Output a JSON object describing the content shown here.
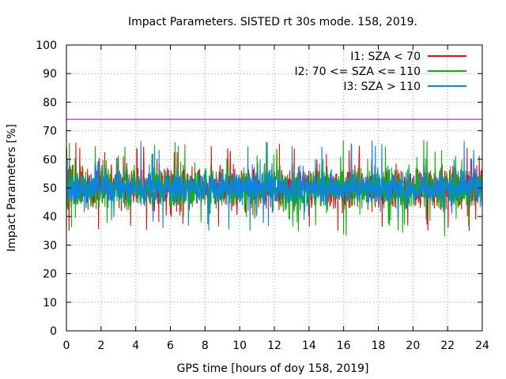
{
  "chart_data": {
    "type": "line",
    "title": "Impact Parameters. SISTED rt 30s mode. 158, 2019.",
    "xlabel": "GPS time [hours of doy 158, 2019]",
    "ylabel": "Impact Parameters [%]",
    "xlim": [
      0,
      24
    ],
    "ylim": [
      0,
      100
    ],
    "x_ticks": [
      "0",
      "2",
      "4",
      "6",
      "8",
      "10",
      "12",
      "14",
      "16",
      "18",
      "20",
      "22",
      "24"
    ],
    "y_ticks": [
      "0",
      "10",
      "20",
      "30",
      "40",
      "50",
      "60",
      "70",
      "80",
      "90",
      "100"
    ],
    "grid": true,
    "legend_position": "top-right",
    "reference_line": {
      "value": 74,
      "color": "#9400d3"
    },
    "series": [
      {
        "name": "I1: SZA < 70",
        "color": "#e01010",
        "center": 50,
        "typical_range": [
          40,
          60
        ],
        "extremes": [
          35,
          66
        ]
      },
      {
        "name": "I2: 70 <= SZA <= 110",
        "color": "#10b010",
        "center": 50,
        "typical_range": [
          40,
          60
        ],
        "extremes": [
          29,
          67
        ]
      },
      {
        "name": "I3: SZA > 110",
        "color": "#0a84e6",
        "center": 50,
        "typical_range": [
          42,
          58
        ],
        "extremes": [
          35,
          68
        ]
      }
    ]
  }
}
